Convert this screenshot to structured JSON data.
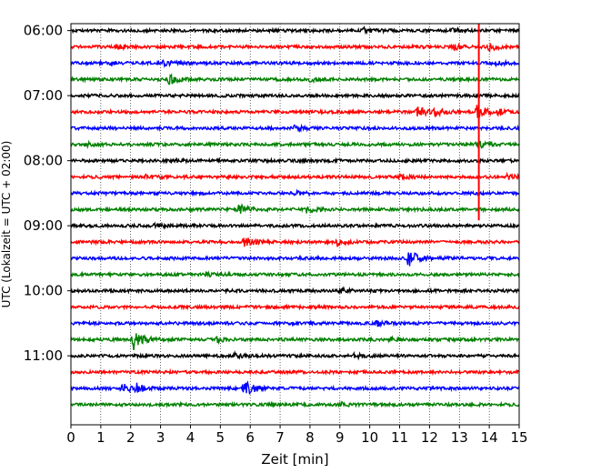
{
  "chart_data": {
    "type": "line",
    "title": "",
    "xlabel": "Zeit  [min]",
    "ylabel": "UTC (Lokalzeit = UTC + 02:00)",
    "xlim": [
      0,
      15
    ],
    "x_ticks": [
      "0",
      "1",
      "2",
      "3",
      "4",
      "5",
      "6",
      "7",
      "8",
      "9",
      "10",
      "11",
      "12",
      "13",
      "14",
      "15"
    ],
    "y_tick_labels": [
      "06:00",
      "07:00",
      "08:00",
      "09:00",
      "10:00",
      "11:00"
    ],
    "grid": "vertical-dotted",
    "legend": "none",
    "series_colors": [
      "#000000",
      "#ff0000",
      "#0000ff",
      "#008000"
    ],
    "series": [
      {
        "start": "06:00",
        "bursts": [
          {
            "x": 9.8,
            "amp": 0.6
          },
          {
            "x": 12.8,
            "amp": 0.5
          }
        ]
      },
      {
        "start": "06:15",
        "bursts": [
          {
            "x": 1.5,
            "amp": 0.55
          },
          {
            "x": 12.8,
            "amp": 0.7
          },
          {
            "x": 14.0,
            "amp": 0.9
          }
        ]
      },
      {
        "start": "06:30",
        "bursts": [
          {
            "x": 1.1,
            "amp": 0.6
          },
          {
            "x": 3.1,
            "amp": 0.7
          },
          {
            "x": 14.2,
            "amp": 0.5
          }
        ]
      },
      {
        "start": "06:45",
        "bursts": [
          {
            "x": 3.3,
            "amp": 1.2
          },
          {
            "x": 8.0,
            "amp": 0.5
          }
        ]
      },
      {
        "start": "07:00",
        "bursts": []
      },
      {
        "start": "07:15",
        "bursts": [
          {
            "x": 11.6,
            "amp": 1.4
          },
          {
            "x": 12.2,
            "amp": 0.9
          },
          {
            "x": 13.6,
            "amp": 2.0
          },
          {
            "x": 14.3,
            "amp": 0.7
          }
        ]
      },
      {
        "start": "07:30",
        "bursts": [
          {
            "x": 7.5,
            "amp": 0.6
          }
        ]
      },
      {
        "start": "07:45",
        "bursts": [
          {
            "x": 0.5,
            "amp": 0.5
          },
          {
            "x": 13.6,
            "amp": 0.8
          }
        ]
      },
      {
        "start": "08:00",
        "bursts": [
          {
            "x": 3.5,
            "amp": 0.5
          }
        ]
      },
      {
        "start": "08:15",
        "bursts": [
          {
            "x": 2.5,
            "amp": 0.5
          },
          {
            "x": 11.0,
            "amp": 0.7
          },
          {
            "x": 14.6,
            "amp": 0.6
          }
        ]
      },
      {
        "start": "08:30",
        "bursts": [
          {
            "x": 7.5,
            "amp": 0.6
          }
        ]
      },
      {
        "start": "08:45",
        "bursts": [
          {
            "x": 5.6,
            "amp": 1.5
          },
          {
            "x": 7.9,
            "amp": 0.8
          }
        ]
      },
      {
        "start": "09:00",
        "bursts": [
          {
            "x": 2.8,
            "amp": 0.45
          }
        ]
      },
      {
        "start": "09:15",
        "bursts": [
          {
            "x": 5.8,
            "amp": 1.3
          },
          {
            "x": 8.9,
            "amp": 0.9
          }
        ]
      },
      {
        "start": "09:30",
        "bursts": [
          {
            "x": 11.3,
            "amp": 2.2
          }
        ]
      },
      {
        "start": "09:45",
        "bursts": [
          {
            "x": 4.5,
            "amp": 0.45
          }
        ]
      },
      {
        "start": "10:00",
        "bursts": [
          {
            "x": 9.0,
            "amp": 0.6
          }
        ]
      },
      {
        "start": "10:15",
        "bursts": []
      },
      {
        "start": "10:30",
        "bursts": [
          {
            "x": 10.2,
            "amp": 0.7
          }
        ]
      },
      {
        "start": "10:45",
        "bursts": [
          {
            "x": 2.1,
            "amp": 3.2
          },
          {
            "x": 4.9,
            "amp": 0.6
          },
          {
            "x": 10.6,
            "amp": 0.7
          }
        ]
      },
      {
        "start": "11:00",
        "bursts": [
          {
            "x": 5.5,
            "amp": 0.6
          },
          {
            "x": 9.5,
            "amp": 0.6
          }
        ]
      },
      {
        "start": "11:15",
        "bursts": []
      },
      {
        "start": "11:30",
        "bursts": [
          {
            "x": 1.7,
            "amp": 1.3
          },
          {
            "x": 2.2,
            "amp": 1.0
          },
          {
            "x": 5.8,
            "amp": 2.4
          }
        ]
      },
      {
        "start": "11:45",
        "bursts": [
          {
            "x": 9.0,
            "amp": 0.45
          }
        ]
      }
    ],
    "annotations": [
      {
        "type": "vertical-line",
        "color": "#ff0000",
        "x": 13.65,
        "from": "06:00",
        "to": "08:55"
      }
    ]
  }
}
